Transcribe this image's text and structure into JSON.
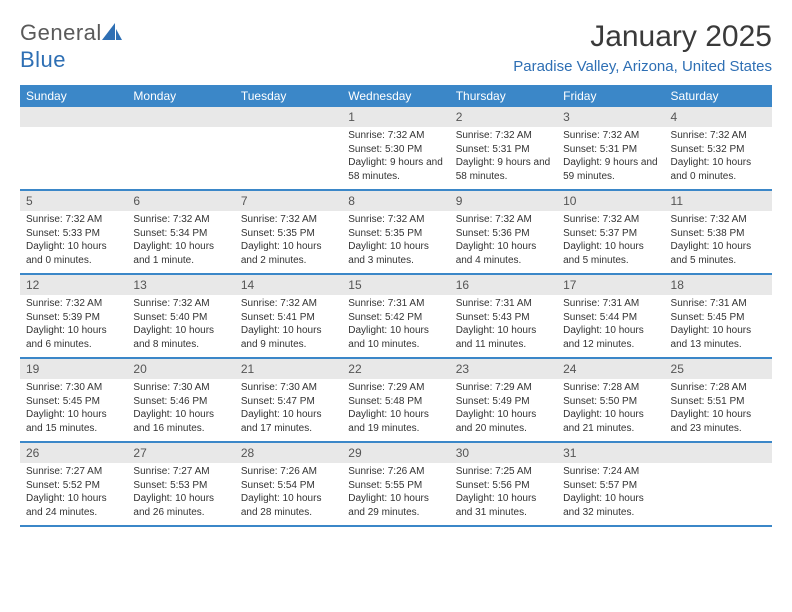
{
  "logo": {
    "text1": "General",
    "text2": "Blue"
  },
  "title": "January 2025",
  "location": "Paradise Valley, Arizona, United States",
  "colors": {
    "header_bg": "#3b87c8",
    "header_text": "#ffffff",
    "daynum_bg": "#e8e8e8",
    "border": "#3b87c8",
    "brand_blue": "#2e6fb4",
    "text": "#333333"
  },
  "dayNames": [
    "Sunday",
    "Monday",
    "Tuesday",
    "Wednesday",
    "Thursday",
    "Friday",
    "Saturday"
  ],
  "weeks": [
    [
      {
        "empty": true
      },
      {
        "empty": true
      },
      {
        "empty": true
      },
      {
        "n": "1",
        "sr": "Sunrise: 7:32 AM",
        "ss": "Sunset: 5:30 PM",
        "dl": "Daylight: 9 hours and 58 minutes."
      },
      {
        "n": "2",
        "sr": "Sunrise: 7:32 AM",
        "ss": "Sunset: 5:31 PM",
        "dl": "Daylight: 9 hours and 58 minutes."
      },
      {
        "n": "3",
        "sr": "Sunrise: 7:32 AM",
        "ss": "Sunset: 5:31 PM",
        "dl": "Daylight: 9 hours and 59 minutes."
      },
      {
        "n": "4",
        "sr": "Sunrise: 7:32 AM",
        "ss": "Sunset: 5:32 PM",
        "dl": "Daylight: 10 hours and 0 minutes."
      }
    ],
    [
      {
        "n": "5",
        "sr": "Sunrise: 7:32 AM",
        "ss": "Sunset: 5:33 PM",
        "dl": "Daylight: 10 hours and 0 minutes."
      },
      {
        "n": "6",
        "sr": "Sunrise: 7:32 AM",
        "ss": "Sunset: 5:34 PM",
        "dl": "Daylight: 10 hours and 1 minute."
      },
      {
        "n": "7",
        "sr": "Sunrise: 7:32 AM",
        "ss": "Sunset: 5:35 PM",
        "dl": "Daylight: 10 hours and 2 minutes."
      },
      {
        "n": "8",
        "sr": "Sunrise: 7:32 AM",
        "ss": "Sunset: 5:35 PM",
        "dl": "Daylight: 10 hours and 3 minutes."
      },
      {
        "n": "9",
        "sr": "Sunrise: 7:32 AM",
        "ss": "Sunset: 5:36 PM",
        "dl": "Daylight: 10 hours and 4 minutes."
      },
      {
        "n": "10",
        "sr": "Sunrise: 7:32 AM",
        "ss": "Sunset: 5:37 PM",
        "dl": "Daylight: 10 hours and 5 minutes."
      },
      {
        "n": "11",
        "sr": "Sunrise: 7:32 AM",
        "ss": "Sunset: 5:38 PM",
        "dl": "Daylight: 10 hours and 5 minutes."
      }
    ],
    [
      {
        "n": "12",
        "sr": "Sunrise: 7:32 AM",
        "ss": "Sunset: 5:39 PM",
        "dl": "Daylight: 10 hours and 6 minutes."
      },
      {
        "n": "13",
        "sr": "Sunrise: 7:32 AM",
        "ss": "Sunset: 5:40 PM",
        "dl": "Daylight: 10 hours and 8 minutes."
      },
      {
        "n": "14",
        "sr": "Sunrise: 7:32 AM",
        "ss": "Sunset: 5:41 PM",
        "dl": "Daylight: 10 hours and 9 minutes."
      },
      {
        "n": "15",
        "sr": "Sunrise: 7:31 AM",
        "ss": "Sunset: 5:42 PM",
        "dl": "Daylight: 10 hours and 10 minutes."
      },
      {
        "n": "16",
        "sr": "Sunrise: 7:31 AM",
        "ss": "Sunset: 5:43 PM",
        "dl": "Daylight: 10 hours and 11 minutes."
      },
      {
        "n": "17",
        "sr": "Sunrise: 7:31 AM",
        "ss": "Sunset: 5:44 PM",
        "dl": "Daylight: 10 hours and 12 minutes."
      },
      {
        "n": "18",
        "sr": "Sunrise: 7:31 AM",
        "ss": "Sunset: 5:45 PM",
        "dl": "Daylight: 10 hours and 13 minutes."
      }
    ],
    [
      {
        "n": "19",
        "sr": "Sunrise: 7:30 AM",
        "ss": "Sunset: 5:45 PM",
        "dl": "Daylight: 10 hours and 15 minutes."
      },
      {
        "n": "20",
        "sr": "Sunrise: 7:30 AM",
        "ss": "Sunset: 5:46 PM",
        "dl": "Daylight: 10 hours and 16 minutes."
      },
      {
        "n": "21",
        "sr": "Sunrise: 7:30 AM",
        "ss": "Sunset: 5:47 PM",
        "dl": "Daylight: 10 hours and 17 minutes."
      },
      {
        "n": "22",
        "sr": "Sunrise: 7:29 AM",
        "ss": "Sunset: 5:48 PM",
        "dl": "Daylight: 10 hours and 19 minutes."
      },
      {
        "n": "23",
        "sr": "Sunrise: 7:29 AM",
        "ss": "Sunset: 5:49 PM",
        "dl": "Daylight: 10 hours and 20 minutes."
      },
      {
        "n": "24",
        "sr": "Sunrise: 7:28 AM",
        "ss": "Sunset: 5:50 PM",
        "dl": "Daylight: 10 hours and 21 minutes."
      },
      {
        "n": "25",
        "sr": "Sunrise: 7:28 AM",
        "ss": "Sunset: 5:51 PM",
        "dl": "Daylight: 10 hours and 23 minutes."
      }
    ],
    [
      {
        "n": "26",
        "sr": "Sunrise: 7:27 AM",
        "ss": "Sunset: 5:52 PM",
        "dl": "Daylight: 10 hours and 24 minutes."
      },
      {
        "n": "27",
        "sr": "Sunrise: 7:27 AM",
        "ss": "Sunset: 5:53 PM",
        "dl": "Daylight: 10 hours and 26 minutes."
      },
      {
        "n": "28",
        "sr": "Sunrise: 7:26 AM",
        "ss": "Sunset: 5:54 PM",
        "dl": "Daylight: 10 hours and 28 minutes."
      },
      {
        "n": "29",
        "sr": "Sunrise: 7:26 AM",
        "ss": "Sunset: 5:55 PM",
        "dl": "Daylight: 10 hours and 29 minutes."
      },
      {
        "n": "30",
        "sr": "Sunrise: 7:25 AM",
        "ss": "Sunset: 5:56 PM",
        "dl": "Daylight: 10 hours and 31 minutes."
      },
      {
        "n": "31",
        "sr": "Sunrise: 7:24 AM",
        "ss": "Sunset: 5:57 PM",
        "dl": "Daylight: 10 hours and 32 minutes."
      },
      {
        "empty": true
      }
    ]
  ]
}
